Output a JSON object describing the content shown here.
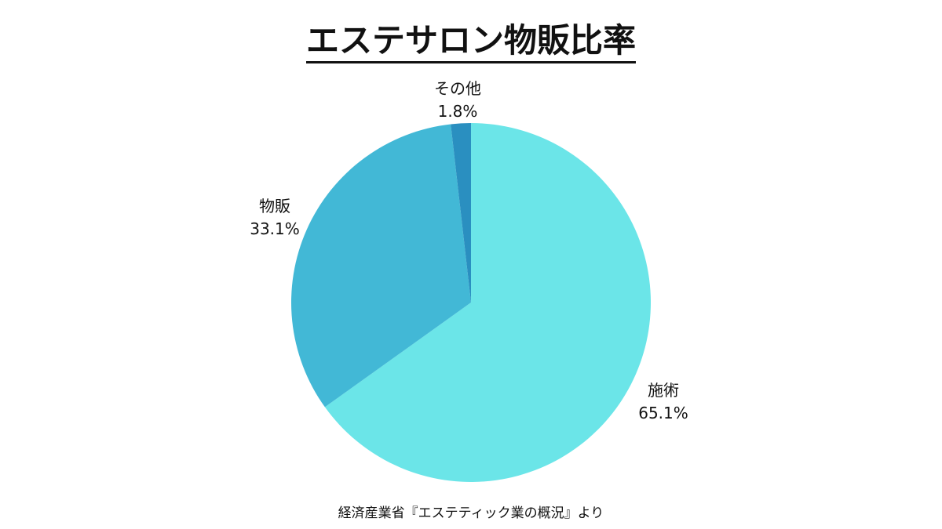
{
  "title": "エステサロン物販比率",
  "source": "経済産業省『エステティック業の概況』より",
  "chart_data": {
    "type": "pie",
    "title": "エステサロン物販比率",
    "slices": [
      {
        "label": "施術",
        "value": 65.1,
        "value_label": "65.1%",
        "color": "#6be5e8"
      },
      {
        "label": "物販",
        "value": 33.1,
        "value_label": "33.1%",
        "color": "#42b8d6"
      },
      {
        "label": "その他",
        "value": 1.8,
        "value_label": "1.8%",
        "color": "#2a8fc0"
      }
    ],
    "start": "12 o'clock",
    "direction": "clockwise"
  }
}
